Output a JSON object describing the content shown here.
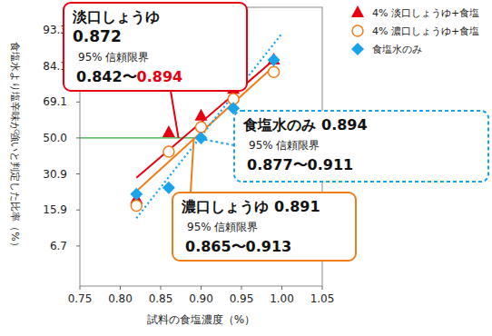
{
  "chart_data": {
    "type": "scatter",
    "x_label": "試料の食塩濃度（%）",
    "y_label": "食塩水より塩辛味が強いと判定した比率（%）",
    "x": [
      0.82,
      0.86,
      0.9,
      0.94,
      0.99
    ],
    "series": [
      {
        "name": "4% 淡口しょうゆ+食塩",
        "color": "#e60012",
        "marker": "triangle",
        "line_style": "solid",
        "values": [
          19.8,
          53,
          62,
          75,
          86
        ],
        "fit": {
          "x": [
            0.82,
            0.99
          ],
          "values": [
            29,
            86
          ]
        }
      },
      {
        "name": "4% 濃口しょうゆ+食塩",
        "color": "#f07d1a",
        "marker": "open-circle",
        "line_style": "solid",
        "values": [
          17.4,
          42.5,
          56,
          70.5,
          82
        ],
        "fit": {
          "x": [
            0.82,
            0.99
          ],
          "values": [
            23,
            84
          ]
        }
      },
      {
        "name": "食塩水のみ",
        "color": "#1aa3e8",
        "marker": "diamond",
        "line_style": "dotted",
        "values": [
          21.8,
          24.5,
          50,
          66,
          86
        ],
        "fit": {
          "x": [
            0.82,
            1.0
          ],
          "values": [
            13.3,
            92.6
          ]
        }
      }
    ],
    "xlim": [
      0.75,
      1.05
    ],
    "xticks": [
      0.75,
      {
        "value": 0.8,
        "label": "0.80"
      },
      0.85,
      {
        "value": 0.9,
        "label": "0.90"
      },
      0.95,
      {
        "value": 1.0,
        "label": "1.00"
      },
      1.05
    ],
    "ylim": [
      2.0,
      96.5
    ],
    "yticks": [
      6.7,
      15.9,
      30.9,
      {
        "value": 50,
        "label": "50.0"
      },
      69.1,
      84.1,
      93.3
    ],
    "reference_line": {
      "y": 50,
      "x_end": 0.9,
      "color": "#2ca83c"
    },
    "legend": "top-right",
    "grid": false,
    "annotations": [
      {
        "title": "淡口しょうゆ",
        "value": 0.872,
        "ci_label": "95% 信頼限界",
        "ci": [
          0.842,
          0.894
        ],
        "ci_sep": "〜",
        "ci_high_color": "#e60012",
        "color": "#e60012",
        "line_style": "solid"
      },
      {
        "title": "食塩水のみ",
        "value": 0.894,
        "ci_label": "95% 信頼限界",
        "ci": [
          0.877,
          0.911
        ],
        "ci_sep": "〜",
        "color": "#1aa3e8",
        "line_style": "dashed"
      },
      {
        "title": "濃口しょうゆ",
        "value": 0.891,
        "ci_label": "95% 信頼限界",
        "ci": [
          0.865,
          0.913
        ],
        "ci_sep": "〜",
        "color": "#f07d1a",
        "line_style": "solid"
      }
    ]
  }
}
